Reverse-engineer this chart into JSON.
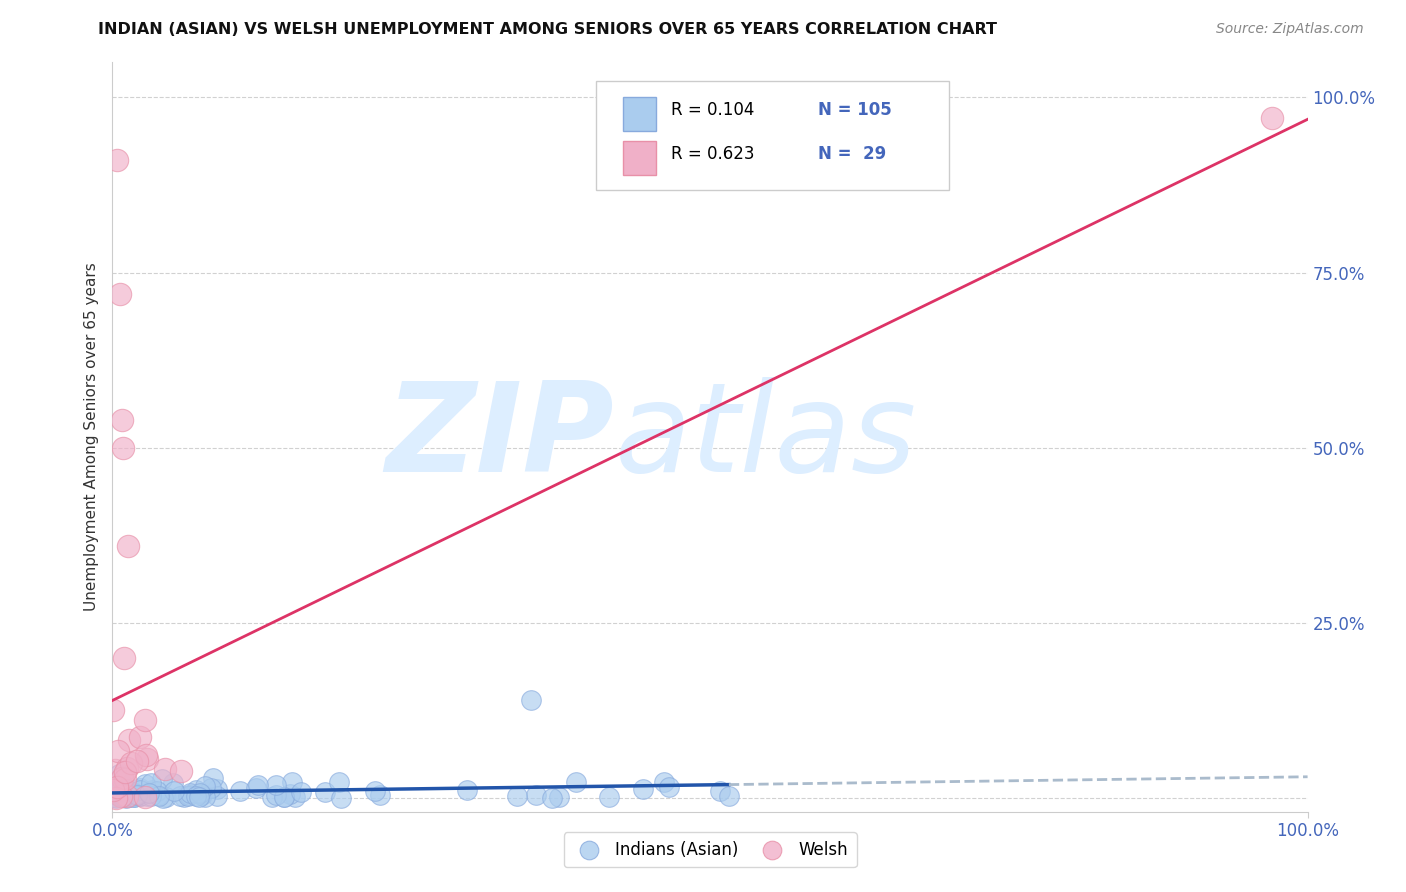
{
  "title": "INDIAN (ASIAN) VS WELSH UNEMPLOYMENT AMONG SENIORS OVER 65 YEARS CORRELATION CHART",
  "source": "Source: ZipAtlas.com",
  "ylabel": "Unemployment Among Seniors over 65 years",
  "xlim": [
    0,
    1.0
  ],
  "ylim": [
    -0.02,
    1.05
  ],
  "xtick_positions": [
    0.0,
    1.0
  ],
  "xticklabels": [
    "0.0%",
    "100.0%"
  ],
  "ytick_positions": [
    0.0,
    0.25,
    0.5,
    0.75,
    1.0
  ],
  "yticklabels_right": [
    "",
    "25.0%",
    "50.0%",
    "75.0%",
    "100.0%"
  ],
  "legend_R_indian": "0.104",
  "legend_N_indian": "105",
  "legend_R_welsh": "0.623",
  "legend_N_welsh": "29",
  "indian_color": "#aaccee",
  "welsh_color": "#f0b0c8",
  "indian_edge_color": "#88aadd",
  "welsh_edge_color": "#e890a8",
  "indian_line_color": "#2255aa",
  "welsh_line_color": "#dd3366",
  "indian_dash_color": "#aabbcc",
  "watermark_zip": "ZIP",
  "watermark_atlas": "atlas",
  "watermark_color": "#ddeeff",
  "background_color": "#ffffff",
  "grid_color": "#cccccc",
  "tick_color": "#4466bb",
  "title_color": "#111111",
  "ylabel_color": "#333333",
  "source_color": "#888888",
  "legend_border_color": "#cccccc",
  "legend_text_color": "#000000",
  "legend_n_color": "#4466bb"
}
